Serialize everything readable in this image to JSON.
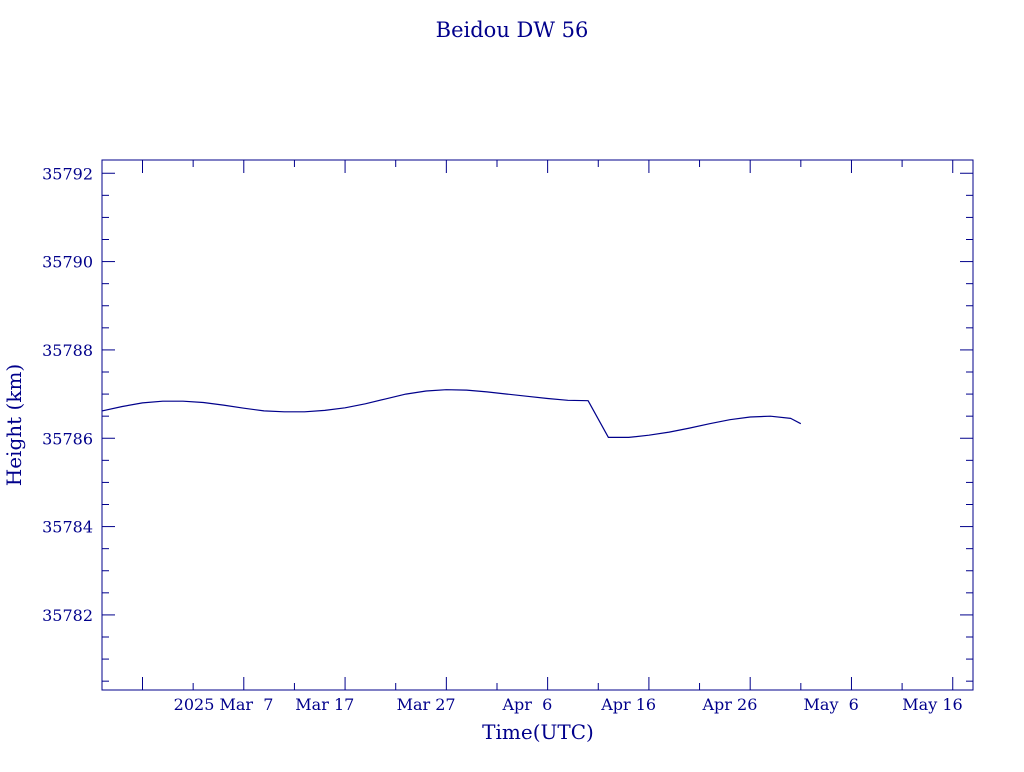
{
  "chart_data": {
    "type": "line",
    "title": "Beidou DW 56",
    "xlabel": "Time(UTC)",
    "ylabel": "Height (km)",
    "xlim": [
      "2025-02-23",
      "2025-05-20"
    ],
    "ylim": [
      35780.3,
      35792.3
    ],
    "x_ticks": [
      "2025-02-27",
      "2025-03-09",
      "2025-03-19",
      "2025-03-29",
      "2025-04-08",
      "2025-04-18",
      "2025-04-28",
      "2025-05-08",
      "2025-05-18"
    ],
    "x_tick_labels": [
      "2025 Mar  7",
      "Mar 17",
      "Mar 27",
      "Apr  6",
      "Apr 16",
      "Apr 26",
      "May  6",
      "May 16"
    ],
    "x_tick_label_at": [
      "2025-03-07",
      "2025-03-17",
      "2025-03-27",
      "2025-04-06",
      "2025-04-16",
      "2025-04-26",
      "2025-05-06",
      "2025-05-16"
    ],
    "y_ticks": [
      35782,
      35784,
      35786,
      35788,
      35790,
      35792
    ],
    "y_tick_labels": [
      "35782",
      "35784",
      "35786",
      "35788",
      "35790",
      "35792"
    ],
    "grid": false,
    "color": "#00008b",
    "series": [
      {
        "x": [
          "2025-02-23",
          "2025-02-25",
          "2025-02-27",
          "2025-03-01",
          "2025-03-03",
          "2025-03-05",
          "2025-03-07",
          "2025-03-09",
          "2025-03-11",
          "2025-03-13",
          "2025-03-15",
          "2025-03-17",
          "2025-03-19",
          "2025-03-21",
          "2025-03-23",
          "2025-03-25",
          "2025-03-27",
          "2025-03-29",
          "2025-03-31",
          "2025-04-02",
          "2025-04-04",
          "2025-04-06",
          "2025-04-08",
          "2025-04-10",
          "2025-04-12",
          "2025-04-14",
          "2025-04-16",
          "2025-04-18",
          "2025-04-20",
          "2025-04-22",
          "2025-04-24",
          "2025-04-26",
          "2025-04-28",
          "2025-04-30",
          "2025-05-02",
          "2025-05-03"
        ],
        "y": [
          35786.62,
          35786.72,
          35786.8,
          35786.84,
          35786.84,
          35786.81,
          35786.75,
          35786.68,
          35786.62,
          35786.6,
          35786.6,
          35786.63,
          35786.69,
          35786.78,
          35786.89,
          35787.0,
          35787.07,
          35787.1,
          35787.09,
          35787.05,
          35787.0,
          35786.95,
          35786.9,
          35786.86,
          35786.85,
          35786.02,
          35786.02,
          35786.07,
          35786.14,
          35786.23,
          35786.33,
          35786.42,
          35786.48,
          35786.5,
          35786.45,
          35786.33
        ]
      }
    ]
  }
}
